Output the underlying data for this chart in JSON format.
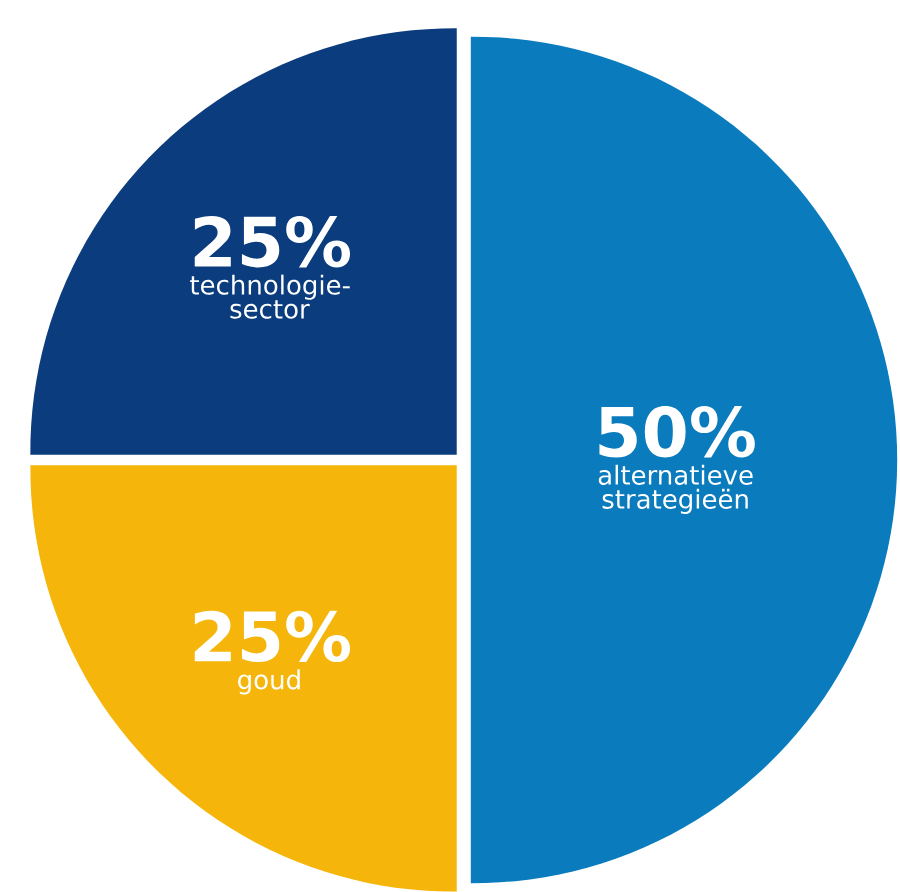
{
  "chart_data": {
    "type": "pie",
    "categories": [
      "alternatieve strategieën",
      "goud",
      "technologie-sector"
    ],
    "values": [
      50,
      25,
      25
    ],
    "colors": [
      "#0a7bbd",
      "#f5b50a",
      "#0b3c7d"
    ],
    "value_labels": [
      "50%",
      "25%",
      "25%"
    ]
  }
}
